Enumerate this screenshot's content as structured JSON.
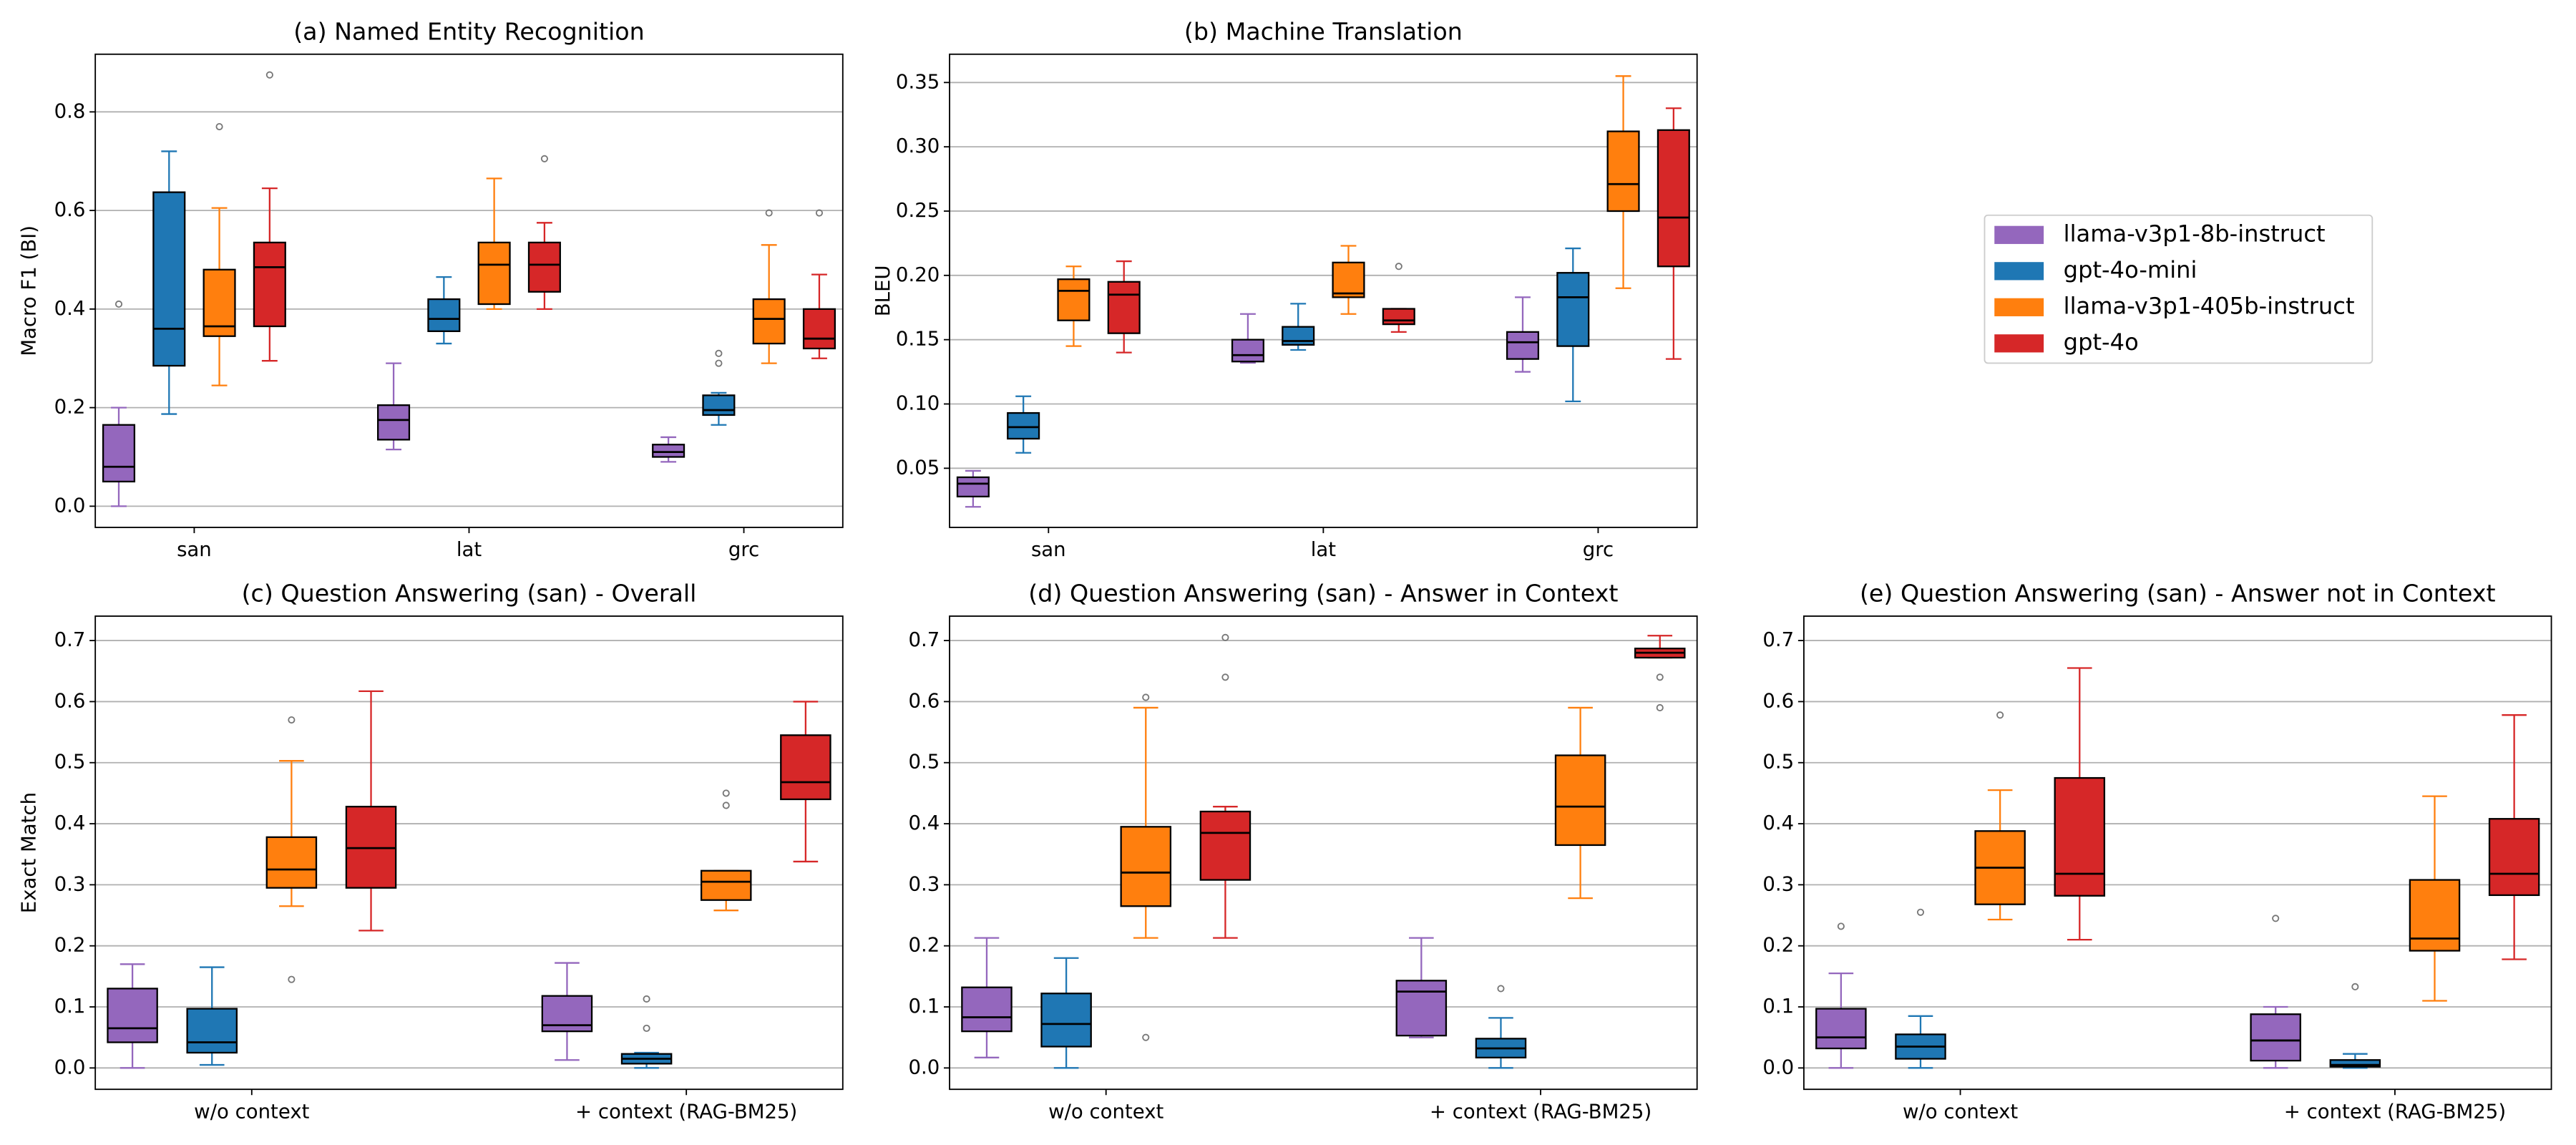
{
  "chart_data": [
    {
      "type": "box",
      "title": "(a) Named Entity Recognition",
      "ylabel": "Macro F1 (BI)",
      "categories": [
        "san",
        "lat",
        "grc"
      ],
      "ylim": [
        -0.043,
        0.917
      ],
      "yticks": [
        {
          "value": 0,
          "label": "0.0"
        },
        0.2,
        0.4,
        0.6,
        0.8
      ],
      "grid": true,
      "series": [
        {
          "boxes": [
            {
              "whislo": 0,
              "q1": 0.05,
              "med": 0.08,
              "q3": 0.165,
              "whishi": 0.2,
              "fliers": [
                0.41
              ]
            },
            {
              "whislo": 0.115,
              "q1": 0.135,
              "med": 0.175,
              "q3": 0.205,
              "whishi": 0.29,
              "fliers": []
            },
            {
              "whislo": 0.09,
              "q1": 0.1,
              "med": 0.11,
              "q3": 0.125,
              "whishi": 0.14,
              "fliers": []
            }
          ]
        },
        {
          "boxes": [
            {
              "whislo": 0.187,
              "q1": 0.285,
              "med": 0.36,
              "q3": 0.637,
              "whishi": 0.72,
              "fliers": []
            },
            {
              "whislo": 0.33,
              "q1": 0.355,
              "med": 0.38,
              "q3": 0.42,
              "whishi": 0.465,
              "fliers": []
            },
            {
              "whislo": 0.165,
              "q1": 0.185,
              "med": 0.195,
              "q3": 0.225,
              "whishi": 0.23,
              "fliers": [
                0.29,
                0.31
              ]
            }
          ]
        },
        {
          "boxes": [
            {
              "whislo": 0.245,
              "q1": 0.345,
              "med": 0.365,
              "q3": 0.48,
              "whishi": 0.605,
              "fliers": [
                0.77
              ]
            },
            {
              "whislo": 0.4,
              "q1": 0.41,
              "med": 0.49,
              "q3": 0.535,
              "whishi": 0.665,
              "fliers": []
            },
            {
              "whislo": 0.29,
              "q1": 0.33,
              "med": 0.38,
              "q3": 0.42,
              "whishi": 0.53,
              "fliers": [
                0.595
              ]
            }
          ]
        },
        {
          "boxes": [
            {
              "whislo": 0.295,
              "q1": 0.365,
              "med": 0.485,
              "q3": 0.535,
              "whishi": 0.645,
              "fliers": [
                0.875
              ]
            },
            {
              "whislo": 0.4,
              "q1": 0.435,
              "med": 0.49,
              "q3": 0.535,
              "whishi": 0.575,
              "fliers": [
                0.705
              ]
            },
            {
              "whislo": 0.3,
              "q1": 0.32,
              "med": 0.34,
              "q3": 0.4,
              "whishi": 0.47,
              "fliers": [
                0.595
              ]
            }
          ]
        }
      ]
    },
    {
      "type": "box",
      "title": "(b) Machine Translation",
      "ylabel": "BLEU",
      "categories": [
        "san",
        "lat",
        "grc"
      ],
      "ylim": [
        0.004,
        0.372
      ],
      "yticks": [
        0.05,
        {
          "value": 0.1,
          "label": "0.10"
        },
        0.15,
        {
          "value": 0.2,
          "label": "0.20"
        },
        0.25,
        {
          "value": 0.3,
          "label": "0.30"
        },
        0.35
      ],
      "grid": true,
      "series": [
        {
          "boxes": [
            {
              "whislo": 0.02,
              "q1": 0.028,
              "med": 0.038,
              "q3": 0.043,
              "whishi": 0.048,
              "fliers": []
            },
            {
              "whislo": 0.132,
              "q1": 0.133,
              "med": 0.138,
              "q3": 0.15,
              "whishi": 0.17,
              "fliers": []
            },
            {
              "whislo": 0.125,
              "q1": 0.135,
              "med": 0.148,
              "q3": 0.156,
              "whishi": 0.183,
              "fliers": []
            }
          ]
        },
        {
          "boxes": [
            {
              "whislo": 0.062,
              "q1": 0.073,
              "med": 0.082,
              "q3": 0.093,
              "whishi": 0.106,
              "fliers": []
            },
            {
              "whislo": 0.142,
              "q1": 0.146,
              "med": 0.149,
              "q3": 0.16,
              "whishi": 0.178,
              "fliers": []
            },
            {
              "whislo": 0.102,
              "q1": 0.145,
              "med": 0.183,
              "q3": 0.202,
              "whishi": 0.221,
              "fliers": []
            }
          ]
        },
        {
          "boxes": [
            {
              "whislo": 0.145,
              "q1": 0.165,
              "med": 0.188,
              "q3": 0.197,
              "whishi": 0.207,
              "fliers": []
            },
            {
              "whislo": 0.17,
              "q1": 0.183,
              "med": 0.186,
              "q3": 0.21,
              "whishi": 0.223,
              "fliers": []
            },
            {
              "whislo": 0.19,
              "q1": 0.25,
              "med": 0.271,
              "q3": 0.312,
              "whishi": 0.355,
              "fliers": []
            }
          ]
        },
        {
          "boxes": [
            {
              "whislo": 0.14,
              "q1": 0.155,
              "med": 0.185,
              "q3": 0.195,
              "whishi": 0.211,
              "fliers": []
            },
            {
              "whislo": 0.156,
              "q1": 0.162,
              "med": 0.165,
              "q3": 0.174,
              "whishi": 0.174,
              "fliers": [
                0.207
              ]
            },
            {
              "whislo": 0.135,
              "q1": 0.207,
              "med": 0.245,
              "q3": 0.313,
              "whishi": 0.33,
              "fliers": []
            }
          ]
        }
      ]
    },
    {
      "type": "box",
      "title": "(c) Question Answering (san) - Overall",
      "ylabel": "Exact Match",
      "categories": [
        "w/o context",
        "+ context (RAG-BM25)"
      ],
      "ylim": [
        -0.035,
        0.74
      ],
      "yticks": [
        {
          "value": 0,
          "label": "0.0"
        },
        0.1,
        0.2,
        0.3,
        0.4,
        0.5,
        0.6,
        0.7
      ],
      "grid": true,
      "series": [
        {
          "boxes": [
            {
              "whislo": 0,
              "q1": 0.042,
              "med": 0.065,
              "q3": 0.13,
              "whishi": 0.17,
              "fliers": []
            },
            {
              "whislo": 0.013,
              "q1": 0.06,
              "med": 0.07,
              "q3": 0.118,
              "whishi": 0.172,
              "fliers": []
            }
          ]
        },
        {
          "boxes": [
            {
              "whislo": 0.005,
              "q1": 0.025,
              "med": 0.042,
              "q3": 0.097,
              "whishi": 0.165,
              "fliers": []
            },
            {
              "whislo": 0,
              "q1": 0.007,
              "med": 0.015,
              "q3": 0.023,
              "whishi": 0.025,
              "fliers": [
                0.113,
                0.065
              ]
            }
          ]
        },
        {
          "boxes": [
            {
              "whislo": 0.265,
              "q1": 0.295,
              "med": 0.325,
              "q3": 0.378,
              "whishi": 0.503,
              "fliers": [
                0.57,
                0.145
              ]
            },
            {
              "whislo": 0.258,
              "q1": 0.275,
              "med": 0.305,
              "q3": 0.323,
              "whishi": 0.323,
              "fliers": [
                0.43,
                0.45
              ]
            }
          ]
        },
        {
          "boxes": [
            {
              "whislo": 0.225,
              "q1": 0.295,
              "med": 0.36,
              "q3": 0.428,
              "whishi": 0.617,
              "fliers": []
            },
            {
              "whislo": 0.338,
              "q1": 0.44,
              "med": 0.468,
              "q3": 0.545,
              "whishi": 0.6,
              "fliers": []
            }
          ]
        }
      ]
    },
    {
      "type": "box",
      "title": "(d) Question Answering (san) - Answer in Context",
      "categories": [
        "w/o context",
        "+ context (RAG-BM25)"
      ],
      "ylim": [
        -0.035,
        0.74
      ],
      "yticks": [
        {
          "value": 0,
          "label": "0.0"
        },
        0.1,
        0.2,
        0.3,
        0.4,
        0.5,
        0.6,
        0.7
      ],
      "grid": true,
      "series": [
        {
          "boxes": [
            {
              "whislo": 0.017,
              "q1": 0.06,
              "med": 0.083,
              "q3": 0.132,
              "whishi": 0.213,
              "fliers": []
            },
            {
              "whislo": 0.05,
              "q1": 0.053,
              "med": 0.125,
              "q3": 0.143,
              "whishi": 0.213,
              "fliers": []
            }
          ]
        },
        {
          "boxes": [
            {
              "whislo": 0,
              "q1": 0.035,
              "med": 0.072,
              "q3": 0.122,
              "whishi": 0.18,
              "fliers": []
            },
            {
              "whislo": 0,
              "q1": 0.017,
              "med": 0.032,
              "q3": 0.048,
              "whishi": 0.082,
              "fliers": [
                0.13
              ]
            }
          ]
        },
        {
          "boxes": [
            {
              "whislo": 0.213,
              "q1": 0.265,
              "med": 0.32,
              "q3": 0.395,
              "whishi": 0.59,
              "fliers": [
                0.607,
                0.05
              ]
            },
            {
              "whislo": 0.278,
              "q1": 0.365,
              "med": 0.428,
              "q3": 0.512,
              "whishi": 0.59,
              "fliers": []
            }
          ]
        },
        {
          "boxes": [
            {
              "whislo": 0.213,
              "q1": 0.308,
              "med": 0.385,
              "q3": 0.42,
              "whishi": 0.428,
              "fliers": [
                0.64,
                0.705
              ]
            },
            {
              "whislo": 0.672,
              "q1": 0.672,
              "med": 0.68,
              "q3": 0.687,
              "whishi": 0.708,
              "fliers": [
                0.64,
                0.59
              ]
            }
          ]
        }
      ]
    },
    {
      "type": "box",
      "title": "(e) Question Answering (san) - Answer not in Context",
      "categories": [
        "w/o context",
        "+ context (RAG-BM25)"
      ],
      "ylim": [
        -0.035,
        0.74
      ],
      "yticks": [
        {
          "value": 0,
          "label": "0.0"
        },
        0.1,
        0.2,
        0.3,
        0.4,
        0.5,
        0.6,
        0.7
      ],
      "grid": true,
      "series": [
        {
          "boxes": [
            {
              "whislo": 0,
              "q1": 0.032,
              "med": 0.05,
              "q3": 0.097,
              "whishi": 0.155,
              "fliers": [
                0.232
              ]
            },
            {
              "whislo": 0,
              "q1": 0.012,
              "med": 0.045,
              "q3": 0.088,
              "whishi": 0.1,
              "fliers": [
                0.245
              ]
            }
          ]
        },
        {
          "boxes": [
            {
              "whislo": 0,
              "q1": 0.015,
              "med": 0.035,
              "q3": 0.055,
              "whishi": 0.085,
              "fliers": [
                0.255
              ]
            },
            {
              "whislo": 0,
              "q1": 0.002,
              "med": 0.005,
              "q3": 0.013,
              "whishi": 0.023,
              "fliers": [
                0.133
              ]
            }
          ]
        },
        {
          "boxes": [
            {
              "whislo": 0.243,
              "q1": 0.268,
              "med": 0.328,
              "q3": 0.388,
              "whishi": 0.455,
              "fliers": [
                0.578
              ]
            },
            {
              "whislo": 0.11,
              "q1": 0.192,
              "med": 0.212,
              "q3": 0.308,
              "whishi": 0.445,
              "fliers": []
            }
          ]
        },
        {
          "boxes": [
            {
              "whislo": 0.21,
              "q1": 0.282,
              "med": 0.318,
              "q3": 0.475,
              "whishi": 0.655,
              "fliers": []
            },
            {
              "whislo": 0.178,
              "q1": 0.283,
              "med": 0.318,
              "q3": 0.408,
              "whishi": 0.578,
              "fliers": []
            }
          ]
        }
      ]
    }
  ],
  "legend": {
    "entries": [
      {
        "name": "llama-v3p1-8b-instruct",
        "color": "#9467bd"
      },
      {
        "name": "gpt-4o-mini",
        "color": "#1f77b4"
      },
      {
        "name": "llama-v3p1-405b-instruct",
        "color": "#ff7f0e"
      },
      {
        "name": "gpt-4o",
        "color": "#d62728"
      }
    ]
  }
}
